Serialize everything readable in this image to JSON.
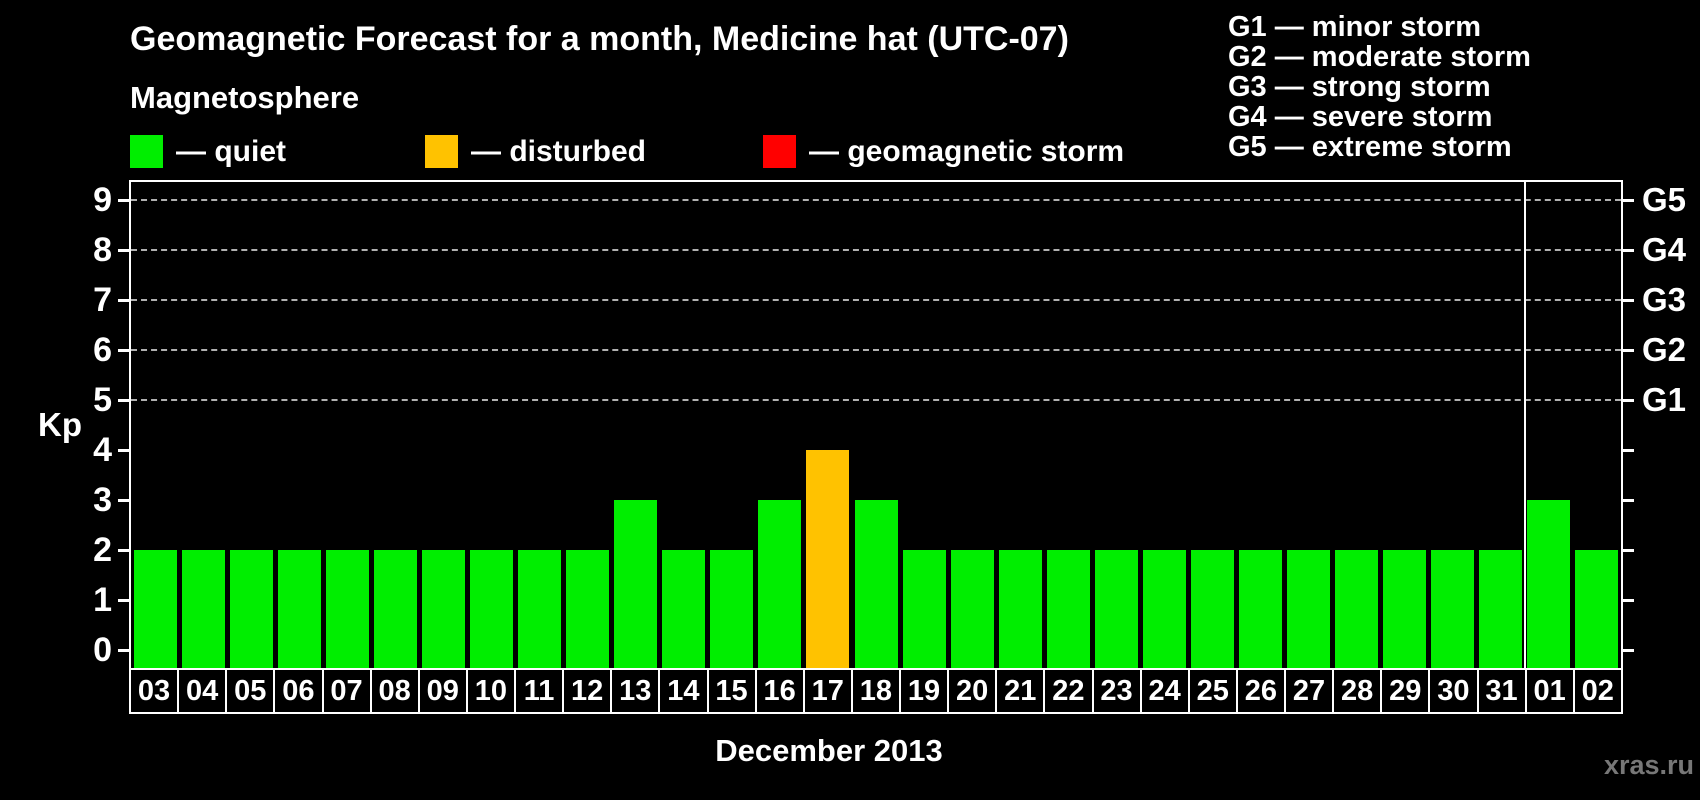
{
  "header": {
    "title": "Geomagnetic Forecast for a month, Medicine hat (UTC-07)",
    "subtitle": "Magnetosphere"
  },
  "condition_legend": {
    "items": [
      {
        "name": "quiet",
        "label": "— quiet",
        "color": "#00ee00"
      },
      {
        "name": "disturbed",
        "label": "— disturbed",
        "color": "#ffc200"
      },
      {
        "name": "storm",
        "label": "— geomagnetic storm",
        "color": "#ff0000"
      }
    ]
  },
  "storm_scale_legend": {
    "lines": [
      "G1 — minor storm",
      "G2 — moderate storm",
      "G3 — strong storm",
      "G4 — severe storm",
      "G5 — extreme storm"
    ]
  },
  "watermark": "xras.ru",
  "chart_data": {
    "type": "bar",
    "title": "Geomagnetic Forecast for a month, Medicine hat (UTC-07)",
    "xlabel": "December 2013",
    "ylabel": "Kp",
    "ylim": [
      0,
      9
    ],
    "y_ticks": [
      0,
      1,
      2,
      3,
      4,
      5,
      6,
      7,
      8,
      9
    ],
    "categories": [
      "03",
      "04",
      "05",
      "06",
      "07",
      "08",
      "09",
      "10",
      "11",
      "12",
      "13",
      "14",
      "15",
      "16",
      "17",
      "18",
      "19",
      "20",
      "21",
      "22",
      "23",
      "24",
      "25",
      "26",
      "27",
      "28",
      "29",
      "30",
      "31",
      "01",
      "02"
    ],
    "values": [
      2,
      2,
      2,
      2,
      2,
      2,
      2,
      2,
      2,
      2,
      3,
      2,
      2,
      3,
      4,
      3,
      2,
      2,
      2,
      2,
      2,
      2,
      2,
      2,
      2,
      2,
      2,
      2,
      2,
      3,
      2
    ],
    "bar_colors_by_state": {
      "quiet": "#00ee00",
      "disturbed": "#ffc200",
      "storm": "#ff0000"
    },
    "state_rule": {
      "disturbed_at_kp": 4,
      "storm_at_kp": 5
    },
    "gridlines_kp": [
      5,
      6,
      7,
      8,
      9
    ],
    "right_axis_labels": [
      {
        "text": "G1",
        "kp": 5
      },
      {
        "text": "G2",
        "kp": 6
      },
      {
        "text": "G3",
        "kp": 7
      },
      {
        "text": "G4",
        "kp": 8
      },
      {
        "text": "G5",
        "kp": 9
      }
    ],
    "month_boundary_index": 29,
    "grid": "dashed",
    "legend_position": "top-left"
  }
}
